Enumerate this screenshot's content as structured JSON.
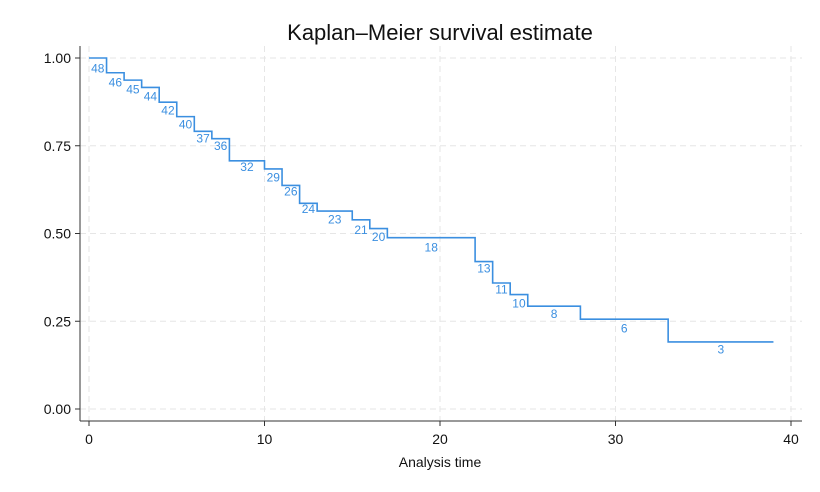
{
  "chart_data": {
    "type": "line",
    "title": "Kaplan–Meier survival estimate",
    "xlabel": "Analysis time",
    "ylabel": "",
    "xlim": [
      0,
      40
    ],
    "ylim": [
      0,
      1
    ],
    "x_ticks": [
      "0",
      "10",
      "20",
      "30",
      "40"
    ],
    "y_ticks": [
      "0.00",
      "0.25",
      "0.50",
      "0.75",
      "1.00"
    ],
    "grid": true,
    "line_color": "#3b8fe0",
    "series": [
      {
        "step_x": [
          0,
          1,
          2,
          3,
          4,
          5,
          6,
          7,
          8,
          10,
          11,
          12,
          13,
          15,
          16,
          17,
          22,
          23,
          24,
          25,
          28,
          33,
          39
        ],
        "step_y": [
          1.0,
          0.958,
          0.937,
          0.916,
          0.874,
          0.833,
          0.791,
          0.77,
          0.707,
          0.684,
          0.637,
          0.586,
          0.564,
          0.539,
          0.514,
          0.488,
          0.42,
          0.359,
          0.326,
          0.293,
          0.256,
          0.191,
          0.191
        ]
      }
    ],
    "at_risk_labels": [
      {
        "x": 0.5,
        "y": 0.97,
        "text": "48"
      },
      {
        "x": 1.5,
        "y": 0.93,
        "text": "46"
      },
      {
        "x": 2.5,
        "y": 0.91,
        "text": "45"
      },
      {
        "x": 3.5,
        "y": 0.89,
        "text": "44"
      },
      {
        "x": 4.5,
        "y": 0.85,
        "text": "42"
      },
      {
        "x": 5.5,
        "y": 0.81,
        "text": "40"
      },
      {
        "x": 6.5,
        "y": 0.77,
        "text": "37"
      },
      {
        "x": 7.5,
        "y": 0.75,
        "text": "36"
      },
      {
        "x": 9.0,
        "y": 0.69,
        "text": "32"
      },
      {
        "x": 10.5,
        "y": 0.66,
        "text": "29"
      },
      {
        "x": 11.5,
        "y": 0.62,
        "text": "26"
      },
      {
        "x": 12.5,
        "y": 0.57,
        "text": "24"
      },
      {
        "x": 14.0,
        "y": 0.54,
        "text": "23"
      },
      {
        "x": 15.5,
        "y": 0.51,
        "text": "21"
      },
      {
        "x": 16.5,
        "y": 0.49,
        "text": "20"
      },
      {
        "x": 19.5,
        "y": 0.46,
        "text": "18"
      },
      {
        "x": 22.5,
        "y": 0.4,
        "text": "13"
      },
      {
        "x": 23.5,
        "y": 0.34,
        "text": "11"
      },
      {
        "x": 24.5,
        "y": 0.3,
        "text": "10"
      },
      {
        "x": 26.5,
        "y": 0.27,
        "text": "8"
      },
      {
        "x": 30.5,
        "y": 0.23,
        "text": "6"
      },
      {
        "x": 36.0,
        "y": 0.17,
        "text": "3"
      }
    ]
  }
}
